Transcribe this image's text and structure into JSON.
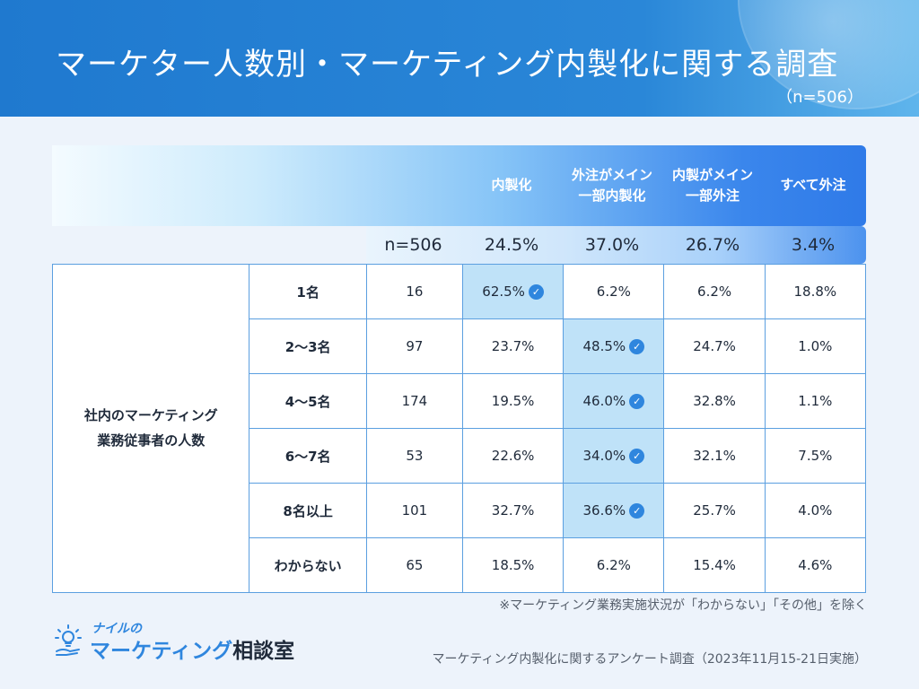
{
  "header": {
    "title": "マーケター人数別・マーケティング内製化に関する調査",
    "sample": "（n=506）"
  },
  "columns": [
    {
      "line1": "内製化",
      "line2": ""
    },
    {
      "line1": "外注がメイン",
      "line2": "一部内製化"
    },
    {
      "line1": "内製がメイン",
      "line2": "一部外注"
    },
    {
      "line1": "すべて外注",
      "line2": ""
    }
  ],
  "summary": {
    "n_label": "n=506",
    "values": [
      "24.5%",
      "37.0%",
      "26.7%",
      "3.4%"
    ]
  },
  "group": {
    "line1": "社内のマーケティング",
    "line2": "業務従事者の人数"
  },
  "rows": [
    {
      "label": "1名",
      "n": "16",
      "values": [
        "62.5%",
        "6.2%",
        "6.2%",
        "18.8%"
      ],
      "max_index": 0
    },
    {
      "label": "2〜3名",
      "n": "97",
      "values": [
        "23.7%",
        "48.5%",
        "24.7%",
        "1.0%"
      ],
      "max_index": 1
    },
    {
      "label": "4〜5名",
      "n": "174",
      "values": [
        "19.5%",
        "46.0%",
        "32.8%",
        "1.1%"
      ],
      "max_index": 1
    },
    {
      "label": "6〜7名",
      "n": "53",
      "values": [
        "22.6%",
        "34.0%",
        "32.1%",
        "7.5%"
      ],
      "max_index": 1
    },
    {
      "label": "8名以上",
      "n": "101",
      "values": [
        "32.7%",
        "36.6%",
        "25.7%",
        "4.0%"
      ],
      "max_index": 1
    },
    {
      "label": "わからない",
      "n": "65",
      "values": [
        "18.5%",
        "6.2%",
        "15.4%",
        "4.6%"
      ],
      "max_index": -1
    }
  ],
  "note": "※マーケティング業務実施状況が「わからない」「その他」を除く",
  "logo": {
    "small": "ナイルの",
    "big_main": "マーケティング",
    "big_suffix": "相談室"
  },
  "source": "マーケティング内製化に関するアンケート調査（2023年11月15-21日実施）",
  "colors": {
    "header_blue": "#1f79cf",
    "highlight": "#bfe2f8",
    "border": "#5b9fe0",
    "check": "#2f86de"
  },
  "icons": {
    "check": "check-circle-icon",
    "logo": "lightbulb-icon"
  }
}
